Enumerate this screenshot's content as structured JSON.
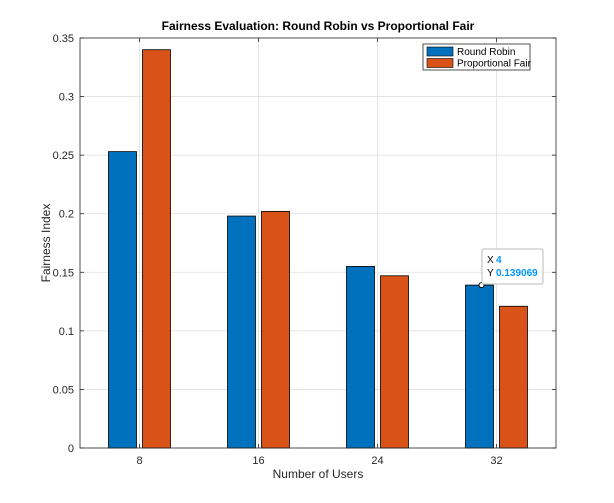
{
  "chart_data": {
    "type": "bar",
    "title": "Fairness Evaluation: Round Robin vs Proportional Fair",
    "xlabel": "Number of Users",
    "ylabel": "Fairness Index",
    "categories": [
      "8",
      "16",
      "24",
      "32"
    ],
    "series": [
      {
        "name": "Round Robin",
        "color": "#0072BD",
        "values": [
          0.253,
          0.198,
          0.155,
          0.139069
        ]
      },
      {
        "name": "Proportional Fair",
        "color": "#D95319",
        "values": [
          0.34,
          0.202,
          0.147,
          0.121
        ]
      }
    ],
    "ylim": [
      0,
      0.35
    ],
    "yticks": [
      "0",
      "0.05",
      "0.1",
      "0.15",
      "0.2",
      "0.25",
      "0.3",
      "0.35"
    ],
    "grid": true,
    "legend_position": "top-right",
    "datatip": {
      "series_index": 0,
      "category_index": 3,
      "x_label": "X",
      "x_value": "4",
      "y_label": "Y",
      "y_value": "0.139069",
      "value_color": "#0096FF"
    }
  }
}
